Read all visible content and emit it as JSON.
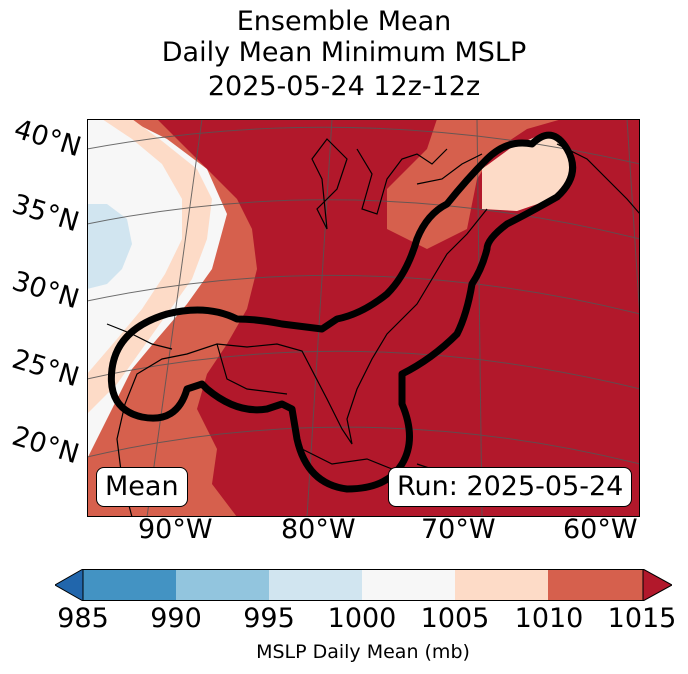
{
  "title": {
    "line1": "Ensemble Mean",
    "line2": "Daily Mean Minimum MSLP",
    "line3": "2025-05-24 12z-12z"
  },
  "map": {
    "lat_labels": [
      "40°N",
      "35°N",
      "30°N",
      "25°N",
      "20°N"
    ],
    "lon_labels": [
      "90°W",
      "80°W",
      "70°W",
      "60°W"
    ],
    "mean_label": "Mean",
    "run_label": "Run: 2025-05-24",
    "colors": {
      "c985_990": "#4393c3",
      "c990_995": "#92c5de",
      "c995_1000": "#d1e5f0",
      "c1000_1005": "#f7f7f7",
      "c1005_1010": "#fddbc7",
      "c1010_1015": "#d6604d",
      "c1015_plus": "#b2182b",
      "below_985": "#2166ac"
    },
    "contour_color": "#000000"
  },
  "colorbar": {
    "ticks": [
      "985",
      "990",
      "995",
      "1000",
      "1005",
      "1010",
      "1015"
    ],
    "label": "MSLP Daily Mean (mb)"
  }
}
